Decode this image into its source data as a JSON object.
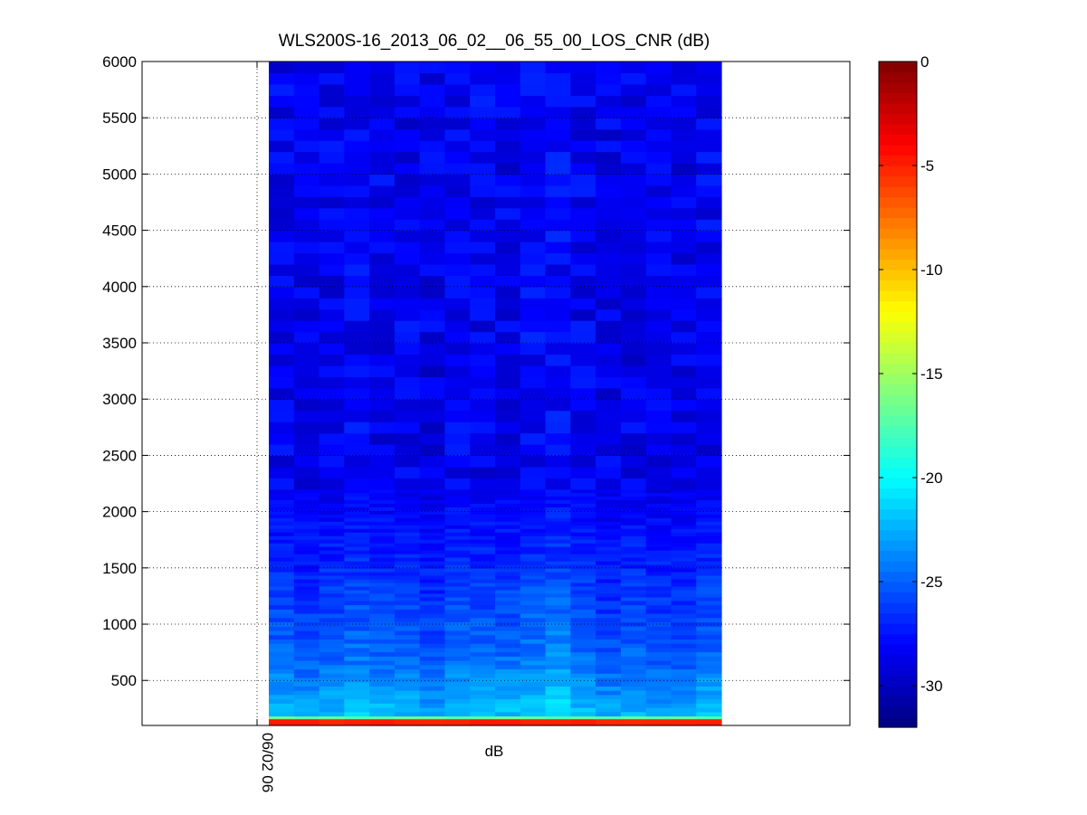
{
  "chart_data": {
    "type": "heatmap",
    "title": "WLS200S-16_2013_06_02__06_55_00_LOS_CNR (dB)",
    "xlabel": "dB",
    "x_tick_labels": [
      "06/02 06"
    ],
    "ylabel": "",
    "ylim": [
      100,
      6000
    ],
    "y_ticks": [
      500,
      1000,
      1500,
      2000,
      2500,
      3000,
      3500,
      4000,
      4500,
      5000,
      5500,
      6000
    ],
    "grid": true,
    "colormap": "jet",
    "colorbar": {
      "clim": [
        -32,
        0
      ],
      "ticks": [
        0,
        -5,
        -10,
        -15,
        -20,
        -25,
        -30
      ]
    },
    "data_summary": {
      "columns": 18,
      "height_range": [
        100,
        6000
      ],
      "lowest_gate_value_db": -5,
      "second_gate_value_db": -17,
      "near_ground_values_db_approx": [
        -22,
        -25
      ],
      "upper_values_db_approx": [
        -29,
        -26
      ]
    }
  },
  "colors": {
    "background": "#ffffff",
    "axes": "#000000"
  }
}
